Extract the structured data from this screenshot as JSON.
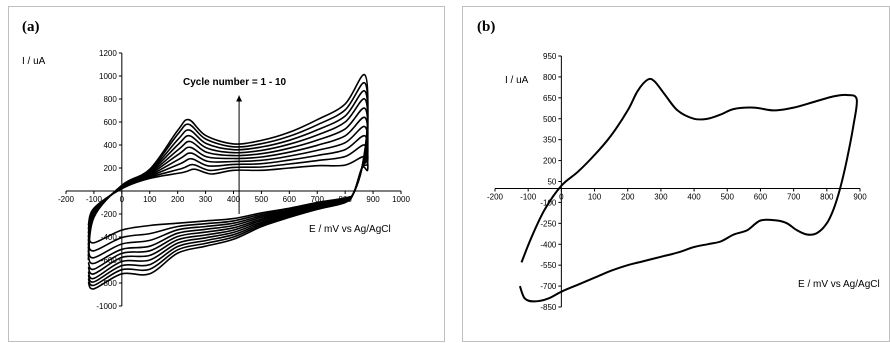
{
  "chart_data": [
    {
      "panel": "(a)",
      "type": "line",
      "ylabel": "I / uA",
      "xlabel": "E / mV vs Ag/AgCl",
      "annotation": "Cycle number = 1 - 10",
      "xlim": [
        -200,
        1000
      ],
      "ylim": [
        -1000,
        1200
      ],
      "xticks": [
        -200,
        -100,
        0,
        100,
        200,
        300,
        400,
        500,
        600,
        700,
        800,
        900,
        1000
      ],
      "yticks": [
        -1000,
        -800,
        -600,
        -400,
        -200,
        200,
        400,
        600,
        800,
        1000,
        1200
      ],
      "cycles": [
        {
          "peak_x": 260,
          "peak_y": 190,
          "end_y": 300,
          "rev_low": -300,
          "cath_low": -450
        },
        {
          "peak_x": 255,
          "peak_y": 230,
          "end_y": 400,
          "rev_low": -370,
          "cath_low": -520
        },
        {
          "peak_x": 250,
          "peak_y": 280,
          "end_y": 480,
          "rev_low": -430,
          "cath_low": -580
        },
        {
          "peak_x": 248,
          "peak_y": 330,
          "end_y": 560,
          "rev_low": -480,
          "cath_low": -630
        },
        {
          "peak_x": 245,
          "peak_y": 380,
          "end_y": 640,
          "rev_low": -520,
          "cath_low": -680
        },
        {
          "peak_x": 245,
          "peak_y": 430,
          "end_y": 720,
          "rev_low": -560,
          "cath_low": -720
        },
        {
          "peak_x": 243,
          "peak_y": 480,
          "end_y": 800,
          "rev_low": -600,
          "cath_low": -760
        },
        {
          "peak_x": 242,
          "peak_y": 530,
          "end_y": 870,
          "rev_low": -640,
          "cath_low": -790
        },
        {
          "peak_x": 240,
          "peak_y": 580,
          "end_y": 940,
          "rev_low": -680,
          "cath_low": -820
        },
        {
          "peak_x": 240,
          "peak_y": 620,
          "end_y": 1010,
          "rev_low": -720,
          "cath_low": -850
        }
      ]
    },
    {
      "panel": "(b)",
      "type": "line",
      "ylabel": "I / uA",
      "xlabel": "E / mV vs Ag/AgCl",
      "xlim": [
        -200,
        900
      ],
      "ylim": [
        -850,
        950
      ],
      "xticks": [
        -200,
        -100,
        0,
        100,
        200,
        300,
        400,
        500,
        600,
        700,
        800,
        900
      ],
      "yticks": [
        -850,
        -700,
        -550,
        -400,
        -250,
        -100,
        50,
        200,
        350,
        500,
        650,
        800,
        950
      ],
      "points": [
        [
          -120,
          -530
        ],
        [
          -90,
          -350
        ],
        [
          -50,
          -150
        ],
        [
          0,
          20
        ],
        [
          50,
          120
        ],
        [
          100,
          240
        ],
        [
          150,
          380
        ],
        [
          200,
          560
        ],
        [
          230,
          700
        ],
        [
          260,
          780
        ],
        [
          280,
          770
        ],
        [
          310,
          680
        ],
        [
          350,
          560
        ],
        [
          400,
          500
        ],
        [
          440,
          500
        ],
        [
          480,
          530
        ],
        [
          520,
          570
        ],
        [
          580,
          580
        ],
        [
          640,
          560
        ],
        [
          700,
          580
        ],
        [
          760,
          620
        ],
        [
          820,
          660
        ],
        [
          860,
          670
        ],
        [
          890,
          640
        ],
        [
          880,
          450
        ],
        [
          860,
          200
        ],
        [
          840,
          0
        ],
        [
          820,
          -150
        ],
        [
          800,
          -250
        ],
        [
          770,
          -320
        ],
        [
          740,
          -330
        ],
        [
          710,
          -300
        ],
        [
          680,
          -250
        ],
        [
          650,
          -230
        ],
        [
          600,
          -230
        ],
        [
          560,
          -300
        ],
        [
          520,
          -330
        ],
        [
          480,
          -380
        ],
        [
          440,
          -400
        ],
        [
          400,
          -420
        ],
        [
          350,
          -460
        ],
        [
          300,
          -490
        ],
        [
          250,
          -520
        ],
        [
          200,
          -550
        ],
        [
          150,
          -590
        ],
        [
          100,
          -640
        ],
        [
          50,
          -690
        ],
        [
          0,
          -740
        ],
        [
          -40,
          -790
        ],
        [
          -80,
          -810
        ],
        [
          -110,
          -790
        ],
        [
          -125,
          -700
        ]
      ]
    }
  ]
}
